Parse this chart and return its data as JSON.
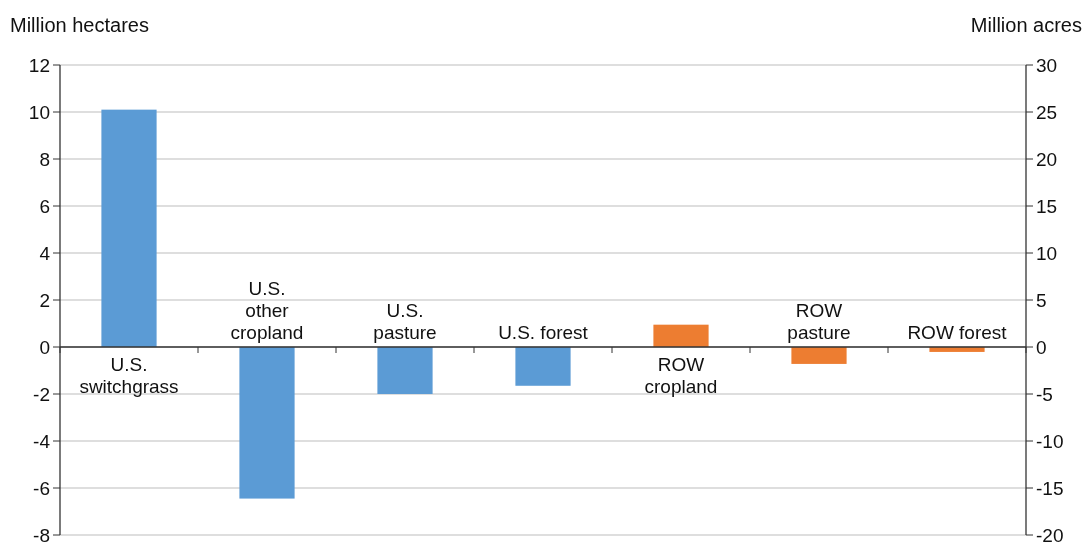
{
  "chart_data": {
    "type": "bar",
    "ylabel": "Million hectares",
    "y2label": "Million acres",
    "categories": [
      "U.S. switchgrass",
      "U.S. other cropland",
      "U.S. pasture",
      "U.S. forest",
      "ROW cropland",
      "ROW pasture",
      "ROW forest"
    ],
    "values": [
      10.1,
      -6.45,
      -2.0,
      -1.65,
      0.95,
      -0.72,
      -0.21
    ],
    "colors": [
      "#5b9bd5",
      "#5b9bd5",
      "#5b9bd5",
      "#5b9bd5",
      "#ed7d31",
      "#ed7d31",
      "#ed7d31"
    ],
    "ylim": [
      -8,
      12
    ],
    "yticks": [
      -8,
      -6,
      -4,
      -2,
      0,
      2,
      4,
      6,
      8,
      10,
      12
    ],
    "y2lim": [
      -20,
      30
    ],
    "y2ticks": [
      -20,
      -15,
      -10,
      -5,
      0,
      5,
      10,
      15,
      20,
      25,
      30
    ],
    "grid": "y"
  }
}
